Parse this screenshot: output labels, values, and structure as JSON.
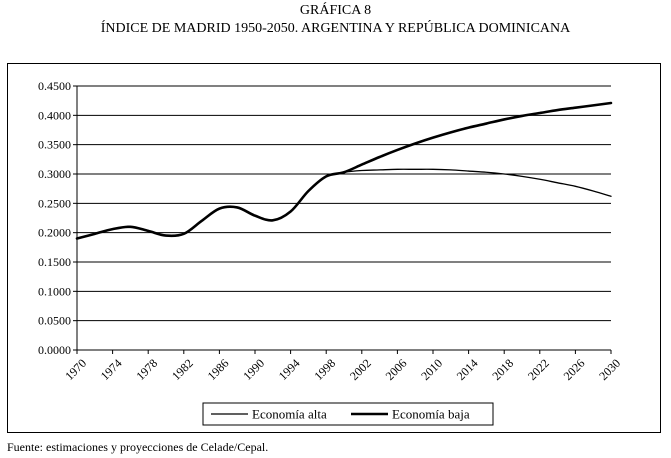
{
  "header": {
    "label": "GRÁFICA 8",
    "title": "ÍNDICE DE MADRID 1950-2050. ARGENTINA Y REPÚBLICA DOMINICANA"
  },
  "source": "Fuente: estimaciones y proyecciones de Celade/Cepal.",
  "chart_data": {
    "type": "line",
    "title": "ÍNDICE DE MADRID 1950-2050. ARGENTINA Y REPÚBLICA DOMINICANA",
    "xlabel": "",
    "ylabel": "",
    "ylim": [
      0,
      0.45
    ],
    "yticks": [
      "0.0000",
      "0.0500",
      "0.1000",
      "0.1500",
      "0.2000",
      "0.2500",
      "0.3000",
      "0.3500",
      "0.4000",
      "0.4500"
    ],
    "xticks": [
      "1970",
      "1974",
      "1978",
      "1982",
      "1986",
      "1990",
      "1994",
      "1998",
      "2002",
      "2006",
      "2010",
      "2014",
      "2018",
      "2022",
      "2026",
      "2030"
    ],
    "grid": true,
    "legend": "bottom",
    "x": [
      1970,
      1972,
      1974,
      1976,
      1978,
      1980,
      1982,
      1984,
      1986,
      1988,
      1990,
      1992,
      1994,
      1996,
      1998,
      2000,
      2002,
      2004,
      2006,
      2008,
      2010,
      2012,
      2014,
      2016,
      2018,
      2020,
      2022,
      2024,
      2026,
      2028,
      2030
    ],
    "series": [
      {
        "name": "Economía alta",
        "color": "#000000",
        "values": [
          0.19,
          0.198,
          0.206,
          0.21,
          0.203,
          0.195,
          0.198,
          0.22,
          0.241,
          0.243,
          0.229,
          0.221,
          0.236,
          0.271,
          0.296,
          0.303,
          0.306,
          0.307,
          0.308,
          0.308,
          0.308,
          0.307,
          0.305,
          0.303,
          0.3,
          0.296,
          0.291,
          0.285,
          0.279,
          0.271,
          0.262
        ]
      },
      {
        "name": "Economía baja",
        "color": "#000000",
        "values": [
          0.19,
          0.198,
          0.206,
          0.21,
          0.203,
          0.195,
          0.198,
          0.22,
          0.241,
          0.243,
          0.229,
          0.221,
          0.236,
          0.271,
          0.296,
          0.303,
          0.316,
          0.329,
          0.341,
          0.352,
          0.362,
          0.371,
          0.379,
          0.386,
          0.393,
          0.399,
          0.404,
          0.409,
          0.413,
          0.417,
          0.421
        ]
      }
    ]
  }
}
